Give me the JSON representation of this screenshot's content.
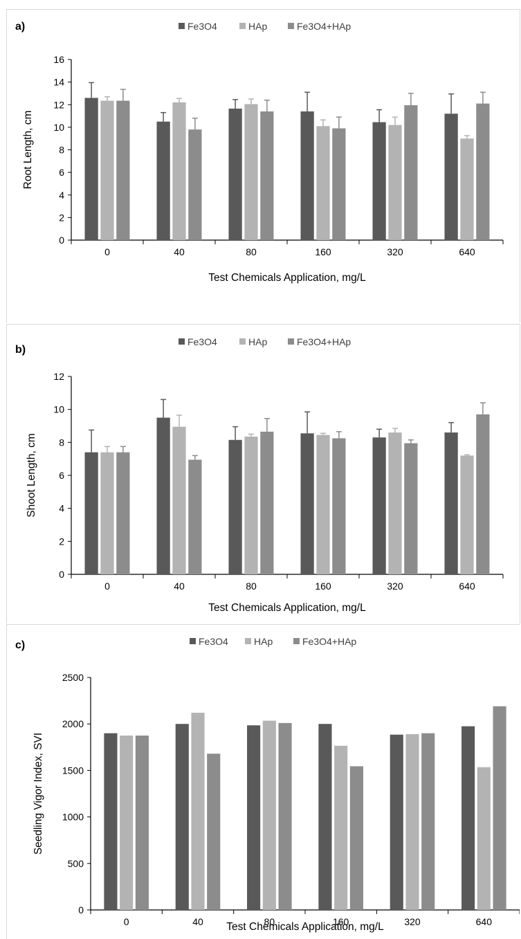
{
  "chart_data": [
    {
      "type": "bar",
      "panel_label": "a)",
      "categories": [
        "0",
        "40",
        "80",
        "160",
        "320",
        "640"
      ],
      "series": [
        {
          "name": "Fe3O4",
          "color": "#595959",
          "values": [
            12.6,
            10.5,
            11.65,
            11.4,
            10.45,
            11.2
          ],
          "errors": [
            1.35,
            0.8,
            0.8,
            1.7,
            1.1,
            1.75
          ]
        },
        {
          "name": "HAp",
          "color": "#b3b3b3",
          "values": [
            12.35,
            12.2,
            12.05,
            10.1,
            10.2,
            9.0
          ],
          "errors": [
            0.35,
            0.35,
            0.45,
            0.55,
            0.7,
            0.25
          ]
        },
        {
          "name": "Fe3O4+HAp",
          "color": "#8c8c8c",
          "values": [
            12.35,
            9.8,
            11.4,
            9.9,
            11.95,
            12.1
          ],
          "errors": [
            1.0,
            1.0,
            1.0,
            1.0,
            1.05,
            1.0
          ]
        }
      ],
      "xlabel": "Test Chemicals Application, mg/L",
      "ylabel": "Root Length, cm",
      "ylim": [
        0,
        16
      ],
      "yticks": [
        0,
        2,
        4,
        6,
        8,
        10,
        12,
        14,
        16
      ],
      "legend": "top"
    },
    {
      "type": "bar",
      "panel_label": "b)",
      "categories": [
        "0",
        "40",
        "80",
        "160",
        "320",
        "640"
      ],
      "series": [
        {
          "name": "Fe3O4",
          "color": "#595959",
          "values": [
            7.4,
            9.5,
            8.15,
            8.55,
            8.3,
            8.6
          ],
          "errors": [
            1.35,
            1.1,
            0.8,
            1.3,
            0.5,
            0.6
          ]
        },
        {
          "name": "HAp",
          "color": "#b3b3b3",
          "values": [
            7.4,
            8.95,
            8.35,
            8.45,
            8.6,
            7.2
          ],
          "errors": [
            0.35,
            0.7,
            0.15,
            0.1,
            0.25,
            0.05
          ]
        },
        {
          "name": "Fe3O4+HAp",
          "color": "#8c8c8c",
          "values": [
            7.4,
            6.95,
            8.65,
            8.25,
            7.95,
            9.7
          ],
          "errors": [
            0.35,
            0.25,
            0.8,
            0.4,
            0.2,
            0.7
          ]
        }
      ],
      "xlabel": "Test Chemicals Application, mg/L",
      "ylabel": "Shoot Length, cm",
      "ylim": [
        0,
        12
      ],
      "yticks": [
        0,
        2,
        4,
        6,
        8,
        10,
        12
      ],
      "legend": "top"
    },
    {
      "type": "bar",
      "panel_label": "c)",
      "categories": [
        "0",
        "40",
        "80",
        "160",
        "320",
        "640"
      ],
      "series": [
        {
          "name": "Fe3O4",
          "color": "#595959",
          "values": [
            1900,
            2000,
            1985,
            2000,
            1885,
            1975
          ]
        },
        {
          "name": "HAp",
          "color": "#b3b3b3",
          "values": [
            1875,
            2120,
            2035,
            1765,
            1890,
            1535
          ]
        },
        {
          "name": "Fe3O4+HAp",
          "color": "#8c8c8c",
          "values": [
            1875,
            1680,
            2010,
            1545,
            1900,
            2190
          ]
        }
      ],
      "xlabel": "Test Chemicals Application, mg/L",
      "ylabel": "Seedling Vigor Index, SVI",
      "ylim": [
        0,
        2500
      ],
      "yticks": [
        0,
        500,
        1000,
        1500,
        2000,
        2500
      ],
      "legend": "top"
    }
  ]
}
